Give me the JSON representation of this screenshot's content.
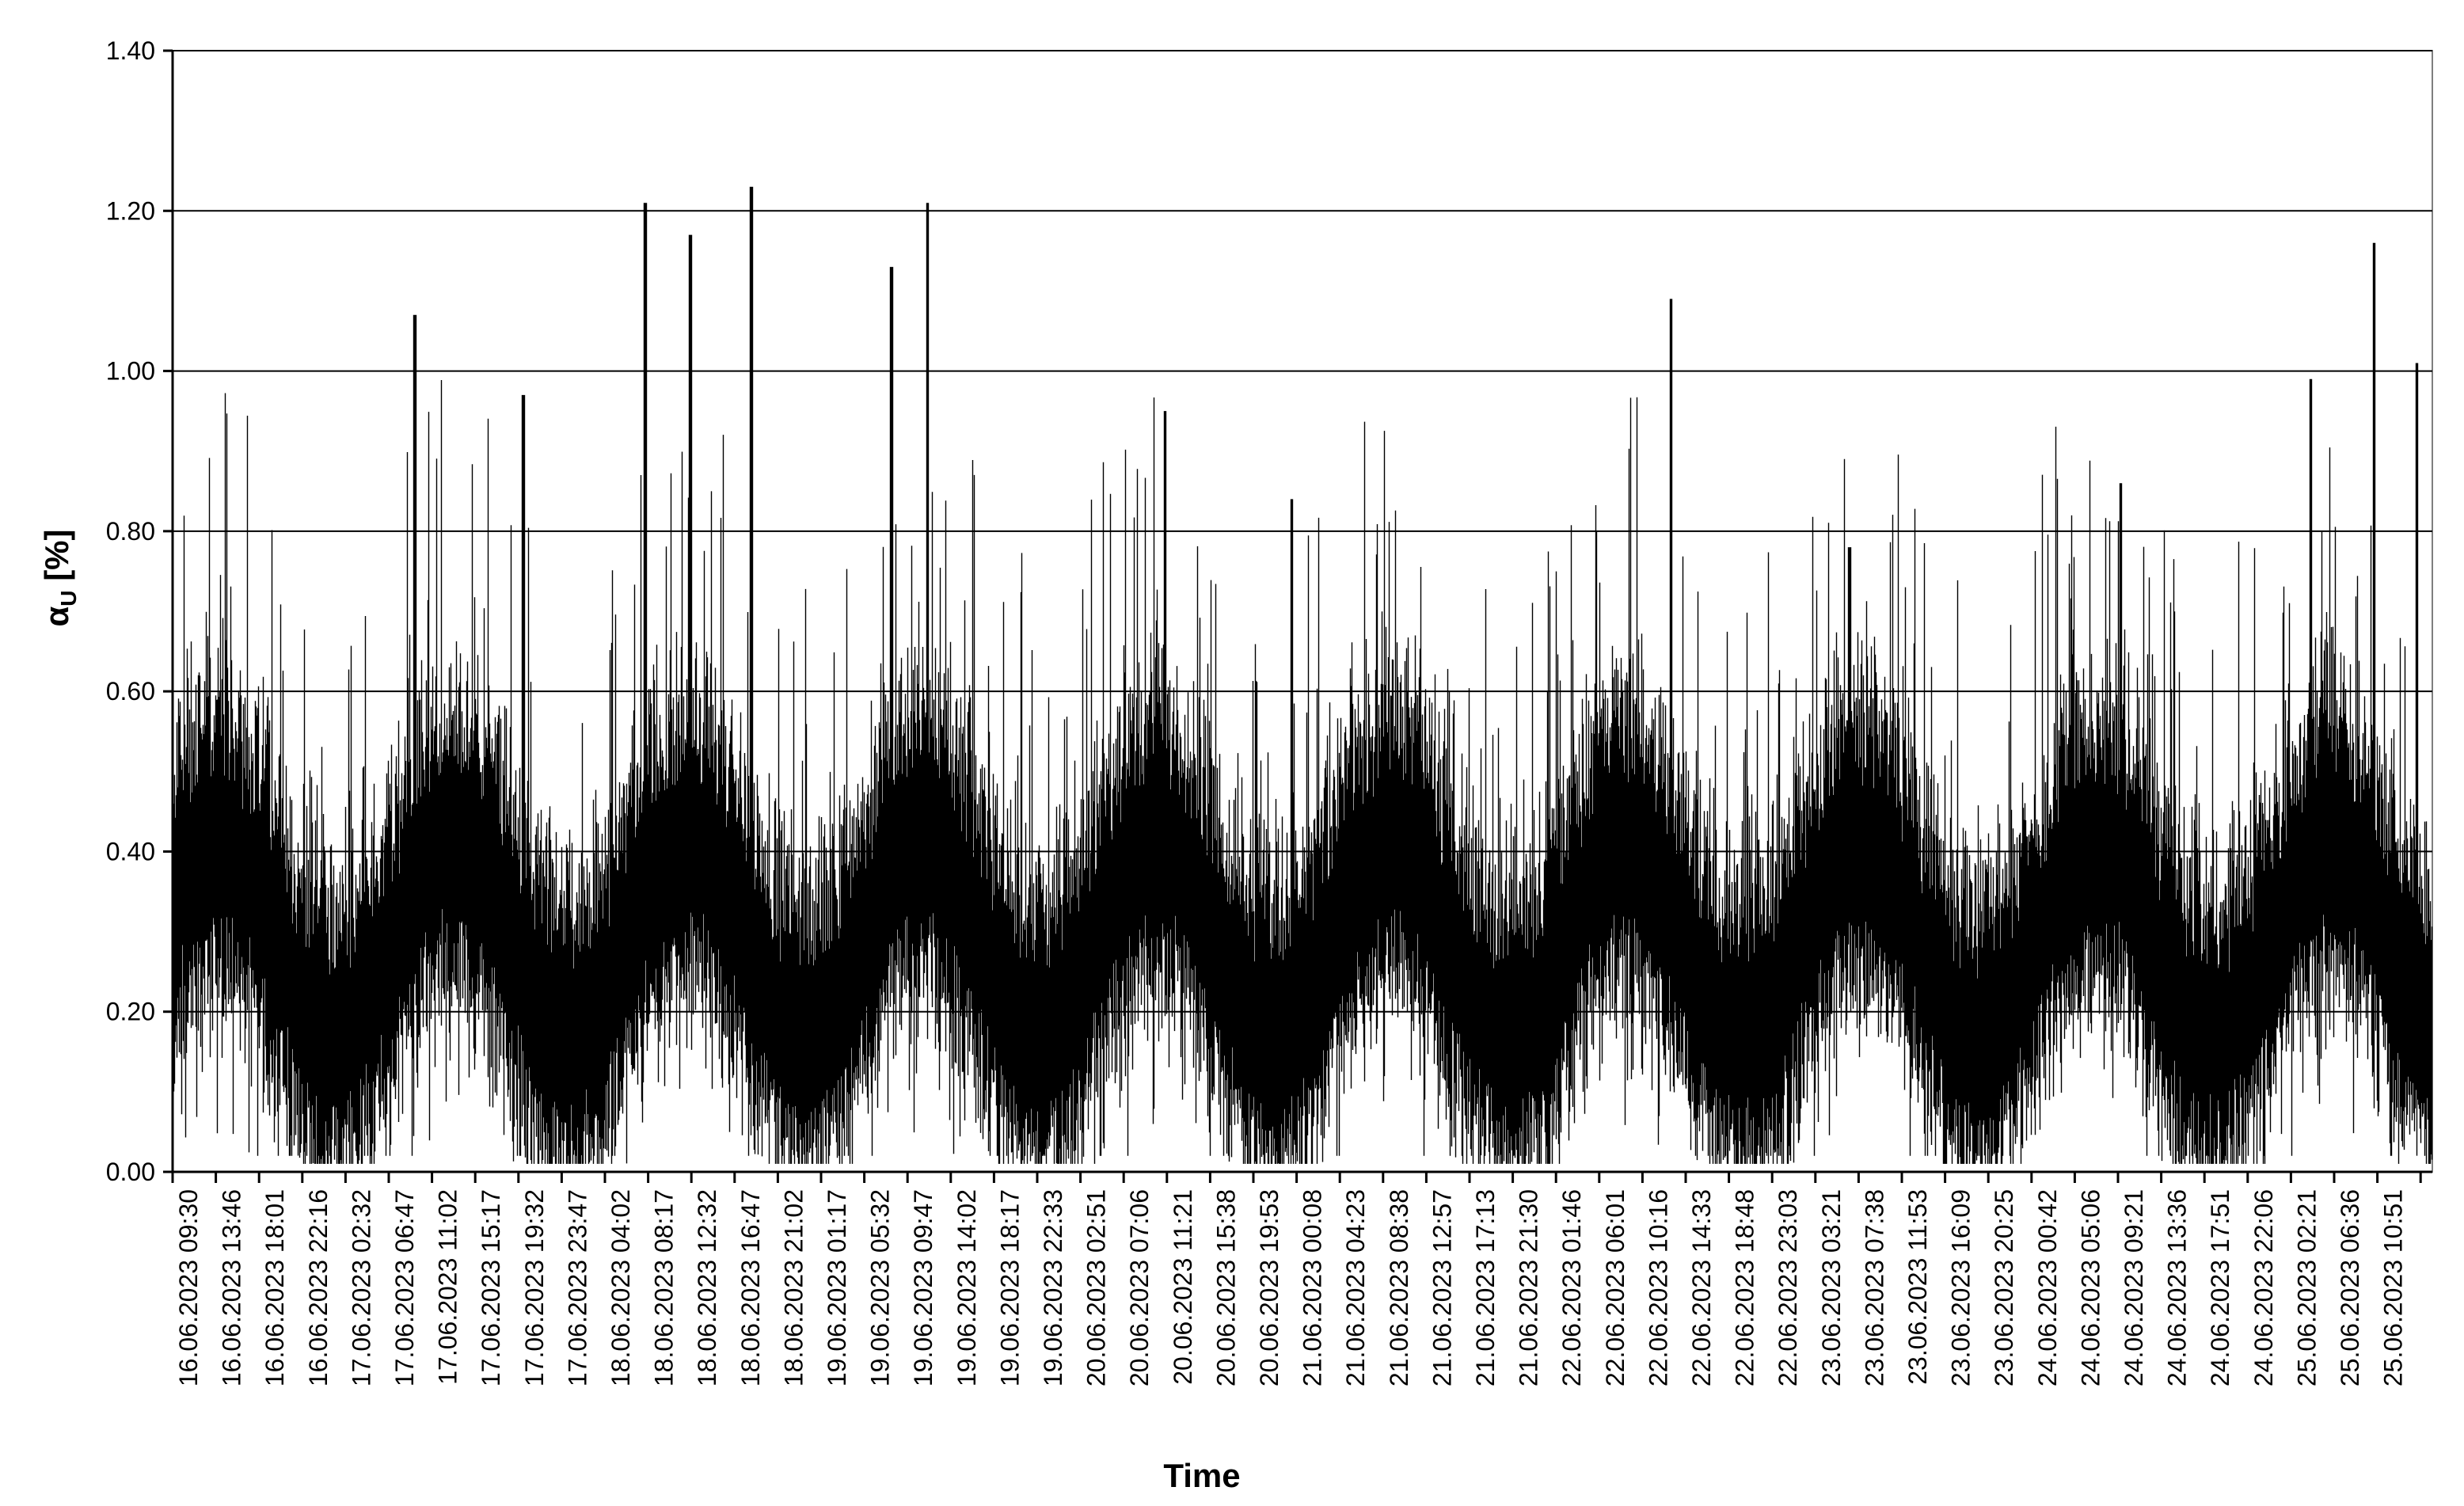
{
  "chart_data": {
    "type": "line",
    "title": "",
    "xlabel": "Time",
    "ylabel_main": "α",
    "ylabel_sub": "U",
    "ylabel_unit": " [%]",
    "ylim": [
      0,
      1.4
    ],
    "yticks": [
      "0.00",
      "0.20",
      "0.40",
      "0.60",
      "0.80",
      "1.00",
      "1.20",
      "1.40"
    ],
    "y_tick_values": [
      0,
      0.2,
      0.4,
      0.6,
      0.8,
      1.0,
      1.2,
      1.4
    ],
    "grid": "horizontal",
    "legend": "none",
    "x_tick_labels": [
      "16.06.2023 09:30",
      "16.06.2023 13:46",
      "16.06.2023 18:01",
      "16.06.2023 22:16",
      "17.06.2023 02:32",
      "17.06.2023 06:47",
      "17.06.2023 11:02",
      "17.06.2023 15:17",
      "17.06.2023 19:32",
      "17.06.2023 23:47",
      "18.06.2023 04:02",
      "18.06.2023 08:17",
      "18.06.2023 12:32",
      "18.06.2023 16:47",
      "18.06.2023 21:02",
      "19.06.2023 01:17",
      "19.06.2023 05:32",
      "19.06.2023 09:47",
      "19.06.2023 14:02",
      "19.06.2023 18:17",
      "19.06.2023 22:33",
      "20.06.2023 02:51",
      "20.06.2023 07:06",
      "20.06.2023 11:21",
      "20.06.2023 15:38",
      "20.06.2023 19:53",
      "21.06.2023 00:08",
      "21.06.2023 04:23",
      "21.06.2023 08:38",
      "21.06.2023 12:57",
      "21.06.2023 17:13",
      "21.06.2023 21:30",
      "22.06.2023 01:46",
      "22.06.2023 06:01",
      "22.06.2023 10:16",
      "22.06.2023 14:33",
      "22.06.2023 18:48",
      "22.06.2023 23:03",
      "23.06.2023 03:21",
      "23.06.2023 07:38",
      "23.06.2023 11:53",
      "23.06.2023 16:09",
      "23.06.2023 20:25",
      "24.06.2023 00:42",
      "24.06.2023 05:06",
      "24.06.2023 09:21",
      "24.06.2023 13:36",
      "24.06.2023 17:51",
      "24.06.2023 22:06",
      "25.06.2023 02:21",
      "25.06.2023 06:36",
      "25.06.2023 10:51"
    ],
    "series": [
      {
        "color": "#000000",
        "envelope_index": [
          0,
          2,
          4,
          7,
          9,
          12,
          15,
          18,
          21,
          24,
          27,
          30,
          33,
          36,
          39,
          42,
          45,
          48,
          51,
          54,
          57,
          60,
          63,
          66,
          69,
          72,
          75,
          78,
          81,
          84,
          87,
          90,
          93,
          96,
          99,
          102,
          105,
          108,
          111,
          114,
          117,
          120,
          123,
          126,
          129,
          132,
          135,
          138,
          141,
          144,
          147,
          150,
          153,
          156,
          159,
          162,
          165,
          168,
          171,
          174,
          177,
          180,
          183,
          186,
          189,
          192,
          195,
          198,
          201,
          204,
          207,
          210,
          213,
          216,
          219,
          222,
          225,
          228,
          231,
          234,
          237,
          240,
          243,
          246,
          249,
          252,
          255,
          258,
          261,
          264,
          267,
          270,
          273,
          276,
          279,
          282,
          285,
          288,
          291,
          294,
          297,
          300,
          303,
          306,
          309,
          312,
          315,
          318,
          321,
          324,
          327,
          330,
          333,
          336,
          339,
          342,
          345,
          348,
          351,
          354,
          357,
          360,
          363,
          366,
          369,
          372,
          375,
          378,
          381,
          384,
          387,
          390,
          393,
          396,
          399,
          402,
          405,
          408,
          411,
          414,
          417,
          420,
          423,
          426,
          429,
          432,
          435,
          438,
          441,
          444,
          447,
          450,
          453,
          456,
          459,
          462,
          465,
          468,
          471,
          474,
          477,
          480,
          483,
          486,
          489,
          492,
          495,
          498,
          501,
          504,
          507,
          510,
          513,
          516,
          519,
          522,
          525,
          528,
          531,
          534,
          537,
          540,
          543,
          546,
          549,
          552,
          555,
          558,
          561,
          564,
          567,
          570,
          573,
          576,
          579,
          582,
          585,
          588,
          591,
          594,
          597,
          600,
          603,
          606,
          609,
          612,
          615,
          618,
          621,
          624,
          627,
          630,
          633,
          636,
          639,
          642,
          645,
          648,
          651,
          654,
          657,
          660,
          663,
          666,
          669,
          672,
          675,
          678,
          681,
          684,
          687,
          690,
          693,
          696,
          699,
          702,
          705,
          708,
          711,
          714,
          717,
          720,
          723,
          726,
          729,
          732,
          735,
          738,
          741,
          744,
          747,
          750,
          753,
          756,
          759,
          762,
          765,
          768,
          771,
          774,
          777,
          780,
          783,
          786,
          789,
          792,
          795,
          798,
          801,
          804,
          807,
          810,
          813,
          816,
          819,
          822,
          825,
          828,
          831,
          834,
          837,
          840,
          843,
          846,
          849,
          852,
          855,
          858,
          861,
          864,
          867,
          870,
          873,
          876,
          879,
          882,
          885,
          888,
          891,
          894,
          897,
          900,
          903,
          906,
          909,
          912,
          915,
          918,
          921,
          924,
          927,
          930,
          933,
          936,
          939,
          942,
          945,
          948,
          951,
          954,
          957,
          960,
          963,
          966,
          969,
          972,
          975,
          978,
          981,
          984,
          987,
          990,
          993,
          996,
          999,
          1002,
          1005,
          1008,
          1011,
          1014,
          1017,
          1020,
          1023,
          1026,
          1029,
          1032,
          1035,
          1038,
          1041,
          1044,
          1047,
          1050,
          1053,
          1056,
          1059,
          1062,
          1065,
          1068,
          1071,
          1074,
          1077,
          1080,
          1083,
          1086,
          1089,
          1092,
          1095,
          1098,
          1101,
          1104,
          1107,
          1110,
          1113,
          1116,
          1119,
          1122,
          1125,
          1128,
          1131,
          1134,
          1137,
          1140,
          1143,
          1146,
          1149,
          1152,
          1155,
          1158,
          1161,
          1164,
          1167,
          1170,
          1173,
          1176,
          1179,
          1182,
          1185,
          1188,
          1191,
          1194,
          1197,
          1200,
          1203,
          1206,
          1209,
          1212,
          1215,
          1218,
          1221,
          1224,
          1227,
          1230,
          1233,
          1236,
          1239,
          1242,
          1245,
          1248,
          1251,
          1254,
          1257,
          1260,
          1263,
          1266,
          1269,
          1272,
          1275,
          1278,
          1281,
          1284,
          1287,
          1290,
          1293,
          1296,
          1299,
          1302,
          1305,
          1308,
          1311,
          1314,
          1317,
          1320,
          1323,
          1326,
          1329,
          1332,
          1335,
          1338,
          1341,
          1344,
          1347,
          1350,
          1353,
          1356,
          1359,
          1362,
          1365,
          1368,
          1371,
          1374,
          1377,
          1380,
          1383,
          1386,
          1389,
          1392,
          1395,
          1398,
          1401,
          1404,
          1407,
          1410,
          1413,
          1416,
          1419,
          1422,
          1425,
          1428,
          1431,
          1434,
          1437,
          1440,
          1443,
          1446,
          1449,
          1452,
          1455,
          1458,
          1461,
          1464,
          1467,
          1470,
          1473,
          1476,
          1479,
          1482,
          1485,
          1488,
          1491,
          1494,
          1497,
          1500,
          1503,
          1506,
          1509,
          1512,
          1515,
          1518,
          1521,
          1524,
          1527,
          1530,
          1533,
          1536,
          1539,
          1542,
          1545,
          1548,
          1551,
          1554,
          1557,
          1560,
          1563,
          1566,
          1569,
          1572,
          1575,
          1578,
          1581,
          1584,
          1587,
          1590,
          1593,
          1596,
          1599,
          1602,
          1605,
          1608,
          1611,
          1614,
          1617,
          1620,
          1623,
          1626,
          1629,
          1632,
          1635,
          1638,
          1641,
          1644,
          1647,
          1650,
          1653,
          1656,
          1659,
          1662,
          1665,
          1668,
          1671,
          1674,
          1677,
          1680,
          1683,
          1686,
          1689,
          1692,
          1695,
          1698,
          1701,
          1704,
          1707,
          1710,
          1713,
          1716,
          1719,
          1722,
          1725,
          1728,
          1731,
          1734,
          1737,
          1740,
          1743,
          1746,
          1749,
          1752,
          1755,
          1758,
          1761,
          1764,
          1767,
          1770,
          1773,
          1776,
          1779,
          1782,
          1785,
          1788,
          1791,
          1794,
          1797,
          1800,
          1803,
          1806,
          1809,
          1812,
          1815,
          1818,
          1821,
          1824,
          1827,
          1830,
          1833,
          1836,
          1839,
          1842,
          1845,
          1848,
          1851,
          1854,
          1857,
          1860,
          1863,
          1866,
          1869,
          1872,
          1875,
          1878,
          1881,
          1884,
          1887,
          1890,
          1893,
          1896,
          1899,
          1902,
          1905,
          1908,
          1911,
          1914,
          1917,
          1920,
          1923,
          1926,
          1929,
          1932,
          1935,
          1938,
          1941,
          1944,
          1947,
          1950,
          1953,
          1956,
          1959,
          1962,
          1965,
          1968,
          1971,
          1974,
          1977,
          1980,
          1983,
          1986,
          1989,
          1992,
          1995,
          1998,
          2001,
          2004,
          2007,
          2010,
          2013,
          2016,
          2019,
          2022,
          2025,
          2028,
          2031,
          2034,
          2037,
          2040,
          2043,
          2046,
          2049,
          2052,
          2055,
          2058,
          2061,
          2064,
          2067,
          2070,
          2073,
          2076,
          2079,
          2082,
          2085,
          2088,
          2091,
          2094,
          2097,
          2100,
          2103,
          2106,
          2109,
          2112,
          2115,
          2118,
          2121,
          2124,
          2127,
          2130,
          2133,
          2136,
          2139,
          2142,
          2145,
          2148,
          2151,
          2154,
          2157,
          2160,
          2163,
          2166,
          2169,
          2172,
          2175,
          2178,
          2181,
          2184,
          2187,
          2190,
          2193,
          2196,
          2199,
          2202,
          2205,
          2208,
          2211,
          2214,
          2217,
          2220,
          2223,
          2226,
          2229,
          2232,
          2235,
          2238,
          2241,
          2244,
          2247,
          2250,
          2253,
          2256,
          2259,
          2262,
          2265,
          2268,
          2271,
          2274,
          2277,
          2280,
          2283,
          2286,
          2289,
          2292,
          2295,
          2298,
          2301,
          2304,
          2307,
          2310,
          2313,
          2316,
          2319,
          2322,
          2325,
          2328,
          2331,
          2334,
          2337,
          2340,
          2343,
          2346,
          2349,
          2352,
          2355,
          2358,
          2361,
          2364,
          2367,
          2370,
          2373,
          2376,
          2379,
          2382,
          2385,
          2388,
          2391,
          2394,
          2397,
          2400,
          2403,
          2406,
          2409,
          2412,
          2415,
          2418,
          2421,
          2424,
          2427,
          2430,
          2433,
          2436,
          2439,
          2442,
          2445,
          2448,
          2451,
          2454,
          2457,
          2460,
          2463,
          2466,
          2469,
          2472,
          2475,
          2478,
          2481,
          2484,
          2487,
          2490,
          2493,
          2496,
          2499,
          2502,
          2505,
          2508,
          2511,
          2514,
          2517,
          2520,
          2523,
          2526,
          2529,
          2532,
          2535,
          2538,
          2541,
          2544,
          2547,
          2550,
          2553,
          2556,
          2559,
          2562,
          2565,
          2568,
          2571,
          2574,
          2577,
          2580,
          2583,
          2586,
          2589,
          2592,
          2595,
          2598,
          2601,
          2604,
          2607,
          2610,
          2613,
          2616,
          2619,
          2622,
          2625,
          2628,
          2631,
          2634,
          2637,
          2640,
          2643,
          2646,
          2649,
          2652,
          2655,
          2658,
          2661,
          2664,
          2667,
          2670,
          2673,
          2676,
          2679,
          2682,
          2685,
          2688,
          2691,
          2694,
          2697,
          2700,
          2703,
          2706,
          2709,
          2712,
          2715,
          2718,
          2721,
          2724,
          2727,
          2730,
          2733,
          2736,
          2739,
          2742,
          2745,
          2748,
          2751,
          2754,
          2757,
          2760,
          2763,
          2766,
          2769,
          2772,
          2775,
          2778,
          2781,
          2784,
          2787,
          2790,
          2793,
          2796,
          2799,
          2802,
          2805,
          2808,
          2811,
          2814,
          2817,
          2820,
          2823,
          2826,
          2829,
          2832,
          2835,
          2838,
          2841,
          2844,
          2847,
          2850,
          2853
        ],
        "note_removed": true
      }
    ]
  }
}
